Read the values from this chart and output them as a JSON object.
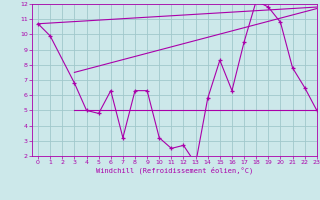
{
  "xlabel": "Windchill (Refroidissement éolien,°C)",
  "bg_color": "#cce8ea",
  "line_color": "#aa00aa",
  "grid_color": "#a0c8cc",
  "zigzag_x": [
    0,
    1,
    3,
    4,
    5,
    6,
    7,
    8,
    9,
    10,
    11,
    12,
    13,
    14,
    15,
    16,
    17,
    18,
    19,
    20,
    21,
    22,
    23
  ],
  "zigzag_y": [
    10.7,
    9.9,
    6.8,
    5.0,
    4.8,
    6.3,
    3.2,
    6.3,
    6.3,
    3.2,
    2.5,
    2.7,
    1.5,
    5.8,
    8.3,
    6.3,
    9.5,
    12.2,
    11.8,
    10.8,
    7.8,
    6.5,
    5.0
  ],
  "trend1_x": [
    0,
    23
  ],
  "trend1_y": [
    10.7,
    11.8
  ],
  "trend2_x": [
    3,
    23
  ],
  "trend2_y": [
    7.5,
    11.7
  ],
  "hline_y": 5.0,
  "hline_xstart": 3,
  "hline_xend": 23,
  "ylim": [
    2,
    12
  ],
  "xlim": [
    -0.5,
    23
  ],
  "yticks": [
    2,
    3,
    4,
    5,
    6,
    7,
    8,
    9,
    10,
    11,
    12
  ],
  "xticks": [
    0,
    1,
    2,
    3,
    4,
    5,
    6,
    7,
    8,
    9,
    10,
    11,
    12,
    13,
    14,
    15,
    16,
    17,
    18,
    19,
    20,
    21,
    22,
    23
  ]
}
